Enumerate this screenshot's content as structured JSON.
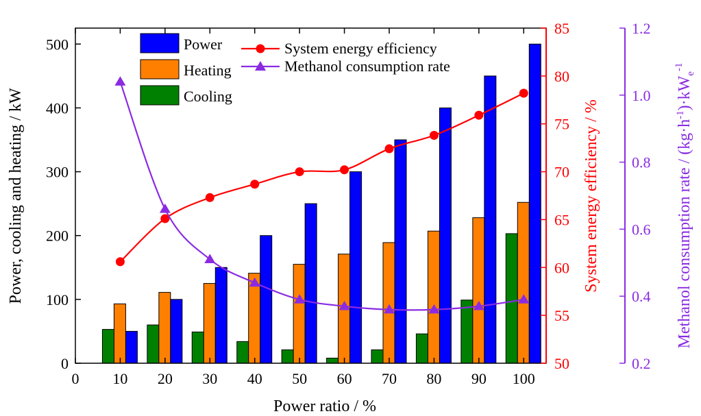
{
  "chart_data": {
    "type": "bar",
    "categories": [
      10,
      20,
      30,
      40,
      50,
      60,
      70,
      80,
      90,
      100
    ],
    "x_ticks": [
      0,
      10,
      20,
      30,
      40,
      50,
      60,
      70,
      80,
      90,
      100
    ],
    "xlabel": "Power ratio / %",
    "y_left": {
      "label": "Power, cooling and heating / kW",
      "range": [
        0,
        525
      ],
      "ticks": [
        0,
        100,
        200,
        300,
        400,
        500
      ]
    },
    "y_right1": {
      "label": "System energy efficiency / %",
      "range": [
        50,
        85
      ],
      "ticks": [
        50,
        55,
        60,
        65,
        70,
        75,
        80,
        85
      ],
      "color": "#ff0000"
    },
    "y_right2": {
      "label_main": "Methanol consumption rate / (kg·h",
      "label_sup1": "-1",
      "label_mid": ")·kW",
      "label_sub": "e",
      "label_sup2": "-1",
      "range": [
        0.2,
        1.2
      ],
      "ticks": [
        "0.2",
        "0.4",
        "0.6",
        "0.8",
        "1.0",
        "1.2"
      ],
      "color": "#8a2be2"
    },
    "bar_series": [
      {
        "name": "Cooling",
        "color": "#008000",
        "values": [
          53,
          60,
          49,
          34,
          21,
          8,
          21,
          46,
          99,
          203
        ]
      },
      {
        "name": "Heating",
        "color": "#ff8000",
        "values": [
          93,
          111,
          125,
          141,
          155,
          171,
          189,
          207,
          228,
          252
        ]
      },
      {
        "name": "Power",
        "color": "#0000ff",
        "values": [
          50,
          100,
          150,
          200,
          250,
          300,
          350,
          400,
          450,
          500
        ]
      }
    ],
    "line_series": [
      {
        "name": "System energy efficiency",
        "axis": "right1",
        "color": "#ff0000",
        "marker": "circle",
        "values": [
          60.6,
          65.1,
          67.3,
          68.7,
          70.0,
          70.2,
          72.4,
          73.8,
          75.9,
          78.2
        ]
      },
      {
        "name": "Methanol consumption rate",
        "axis": "right2",
        "color": "#8a2be2",
        "marker": "triangle",
        "values": [
          1.04,
          0.66,
          0.51,
          0.44,
          0.39,
          0.37,
          0.36,
          0.36,
          0.37,
          0.39
        ]
      }
    ],
    "legend_bars": [
      "Power",
      "Heating",
      "Cooling"
    ],
    "legend_lines": [
      "System energy efficiency",
      "Methanol consumption rate"
    ]
  }
}
